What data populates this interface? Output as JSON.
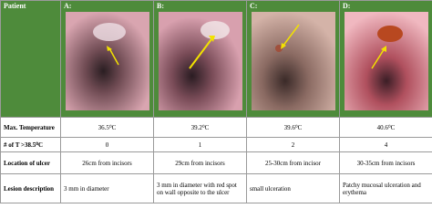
{
  "header": {
    "patient": "Patient",
    "columns": [
      "A:",
      "B:",
      "C:",
      "D:"
    ]
  },
  "rows": [
    {
      "label": "Max. Temperature",
      "cells": [
        "36.5⁰C",
        "39.2⁰C",
        "39.6⁰C",
        "40.6⁰C"
      ]
    },
    {
      "label": "# of T >38.5⁰C",
      "cells": [
        0,
        1,
        2,
        4
      ]
    },
    {
      "label": "Location of ulcer",
      "cells": [
        "26cm from incisors",
        "29cm from incisors",
        "25-30cm from incisor",
        "30-35cm from incisors"
      ]
    },
    {
      "label": "Lesion description",
      "cells": [
        "3 mm in diameter",
        "3 mm in diameter with red spot on wall opposite to the ulcer",
        "small ulceration",
        "Patchy mucosal ulceration and erythema"
      ]
    }
  ]
}
